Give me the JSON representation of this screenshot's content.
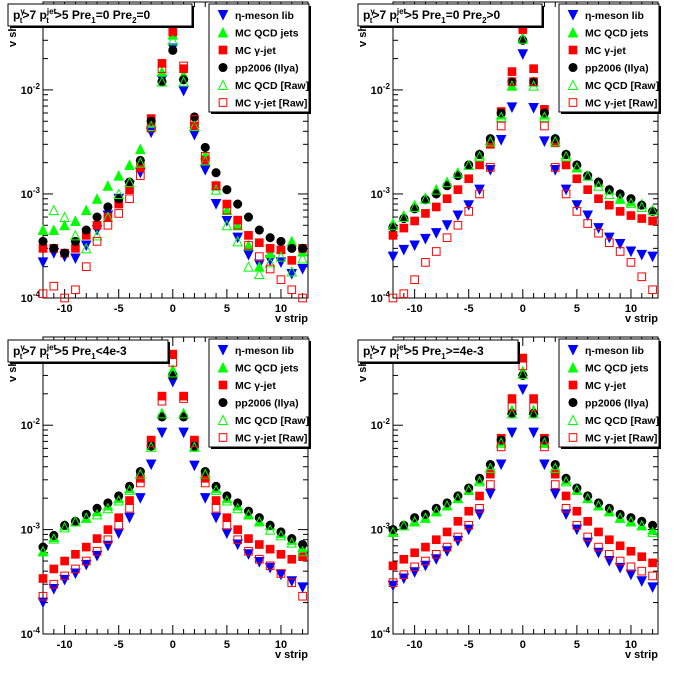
{
  "chart_data": [
    {
      "type": "scatter",
      "title": "p_t^γ>7  p_t^jet>5  Pre_1=0  Pre_2=0",
      "xlabel": "v strip",
      "ylabel": "v shape",
      "log_y": true,
      "xlim": [
        -12,
        12.5
      ],
      "ylim": [
        0.0001,
        0.07
      ],
      "x": [
        -12,
        -11,
        -10,
        -9,
        -8,
        -7,
        -6,
        -5,
        -4,
        -3,
        -2,
        -1,
        0,
        1,
        2,
        3,
        4,
        5,
        6,
        7,
        8,
        9,
        10,
        11,
        12
      ],
      "series": [
        {
          "name": "η-meson lib",
          "values": [
            0.00022,
            0.00027,
            0.00025,
            0.00024,
            0.00032,
            0.00045,
            0.00062,
            0.0009,
            0.0012,
            0.0016,
            0.0039,
            0.0125,
            0.025,
            0.0098,
            0.0037,
            0.0017,
            0.0008,
            0.00055,
            0.00038,
            0.00026,
            0.00021,
            0.00023,
            0.00022,
            0.00017,
            0.00019
          ]
        },
        {
          "name": "MC QCD jets",
          "values": [
            0.00045,
            0.00045,
            0.0005,
            0.00055,
            0.0007,
            0.0009,
            0.0012,
            0.0015,
            0.0019,
            0.0027,
            0.0049,
            0.015,
            0.034,
            0.014,
            0.0048,
            0.0024,
            0.0012,
            0.0007,
            0.0005,
            0.00032,
            0.0002,
            0.00027,
            0.0003,
            0.00035,
            0.00028
          ]
        },
        {
          "name": "MC γ-jet",
          "values": [
            0.0003,
            0.0003,
            0.00027,
            0.0003,
            0.0004,
            0.0005,
            0.0006,
            0.0008,
            0.0011,
            0.0018,
            0.0053,
            0.018,
            0.036,
            0.016,
            0.0045,
            0.0021,
            0.0012,
            0.0008,
            0.00056,
            0.0004,
            0.00034,
            0.0003,
            0.00029,
            0.00023,
            0.0003
          ]
        },
        {
          "name": "pp2006 (Ilya)",
          "values": [
            0.00035,
            0.0003,
            0.00027,
            0.00035,
            0.00045,
            0.0006,
            0.00075,
            0.0009,
            0.0013,
            0.0021,
            0.005,
            0.012,
            0.024,
            0.0125,
            0.0055,
            0.0028,
            0.0016,
            0.0011,
            0.0008,
            0.0006,
            0.00045,
            0.00038,
            0.00035,
            0.0003,
            0.0003
          ]
        },
        {
          "name": "MC QCD [Raw]",
          "values": [
            0.00045,
            0.0007,
            0.0006,
            0.0004,
            0.0003,
            0.0004,
            0.0006,
            0.001,
            0.0013,
            0.002,
            0.0045,
            0.012,
            0.03,
            0.012,
            0.0045,
            0.0021,
            0.0011,
            0.0005,
            0.00035,
            0.0002,
            0.00017,
            0.00022,
            0.00025,
            0.00018,
            0.00024
          ]
        },
        {
          "name": "MC γ-jet [Raw]",
          "values": [
            0.00011,
            0.00013,
            0.0001,
            0.00012,
            0.0002,
            0.00035,
            0.0005,
            0.00065,
            0.0009,
            0.0015,
            0.0043,
            0.016,
            0.038,
            0.017,
            0.0052,
            0.0023,
            0.0012,
            0.0007,
            0.0005,
            0.00032,
            0.00025,
            0.00019,
            0.00015,
            0.00012,
            0.0001
          ]
        }
      ]
    },
    {
      "type": "scatter",
      "title": "p_t^γ>7  p_t^jet>5  Pre_1=0  Pre_2>0",
      "xlabel": "v strip",
      "ylabel": "v shape",
      "log_y": true,
      "xlim": [
        -12,
        12.5
      ],
      "ylim": [
        0.0001,
        0.07
      ],
      "x": [
        -12,
        -11,
        -10,
        -9,
        -8,
        -7,
        -6,
        -5,
        -4,
        -3,
        -2,
        -1,
        0,
        1,
        2,
        3,
        4,
        5,
        6,
        7,
        8,
        9,
        10,
        11,
        12
      ],
      "series": [
        {
          "name": "η-meson lib",
          "values": [
            0.00025,
            0.00029,
            0.00032,
            0.00037,
            0.00042,
            0.0005,
            0.00062,
            0.00078,
            0.0011,
            0.0017,
            0.0033,
            0.0068,
            0.022,
            0.0067,
            0.0032,
            0.0017,
            0.0011,
            0.00078,
            0.00062,
            0.00047,
            0.00038,
            0.00033,
            0.00028,
            0.00026,
            0.00025
          ]
        },
        {
          "name": "MC QCD jets",
          "values": [
            0.00052,
            0.00062,
            0.00078,
            0.00092,
            0.0011,
            0.0013,
            0.0016,
            0.0019,
            0.0024,
            0.0033,
            0.0058,
            0.011,
            0.032,
            0.012,
            0.0058,
            0.0034,
            0.0024,
            0.0018,
            0.0015,
            0.0013,
            0.0011,
            0.0009,
            0.00085,
            0.0008,
            0.0007
          ]
        },
        {
          "name": "MC γ-jet",
          "values": [
            0.0004,
            0.00047,
            0.00055,
            0.00065,
            0.00075,
            0.0009,
            0.0011,
            0.0014,
            0.0019,
            0.003,
            0.0062,
            0.015,
            0.038,
            0.016,
            0.0065,
            0.0031,
            0.0019,
            0.0014,
            0.0011,
            0.0009,
            0.00078,
            0.00068,
            0.00062,
            0.00058,
            0.00055
          ]
        },
        {
          "name": "pp2006 (Ilya)",
          "values": [
            0.00048,
            0.00058,
            0.00072,
            0.00088,
            0.001,
            0.0012,
            0.0015,
            0.0019,
            0.0024,
            0.0034,
            0.006,
            0.012,
            0.03,
            0.012,
            0.006,
            0.0034,
            0.0024,
            0.0019,
            0.0015,
            0.0013,
            0.0011,
            0.001,
            0.0009,
            0.00078,
            0.00068
          ]
        },
        {
          "name": "MC QCD [Raw]",
          "values": [
            0.0005,
            0.0006,
            0.00075,
            0.0009,
            0.0011,
            0.0013,
            0.0016,
            0.0019,
            0.0023,
            0.0032,
            0.0055,
            0.011,
            0.031,
            0.011,
            0.0055,
            0.0032,
            0.0023,
            0.0018,
            0.0015,
            0.0012,
            0.001,
            0.0009,
            0.00082,
            0.00075,
            0.0007
          ]
        },
        {
          "name": "MC γ-jet [Raw]",
          "values": [
            0.0001,
            0.00011,
            0.00015,
            0.00022,
            0.00028,
            0.00038,
            0.0005,
            0.00068,
            0.001,
            0.0018,
            0.0045,
            0.012,
            0.052,
            0.012,
            0.0045,
            0.0018,
            0.001,
            0.00068,
            0.00052,
            0.00042,
            0.00034,
            0.00028,
            0.00022,
            0.00016,
            0.00012
          ]
        }
      ]
    },
    {
      "type": "scatter",
      "title": "p_t^γ>7  p_t^jet>5  Pre_1<4e-3",
      "xlabel": "v strip",
      "ylabel": "v shape",
      "log_y": true,
      "xlim": [
        -12,
        12.5
      ],
      "ylim": [
        0.0001,
        0.07
      ],
      "x": [
        -12,
        -11,
        -10,
        -9,
        -8,
        -7,
        -6,
        -5,
        -4,
        -3,
        -2,
        -1,
        0,
        1,
        2,
        3,
        4,
        5,
        6,
        7,
        8,
        9,
        10,
        11,
        12
      ],
      "series": [
        {
          "name": "η-meson lib",
          "values": [
            0.0002,
            0.00027,
            0.00033,
            0.00038,
            0.00046,
            0.00056,
            0.0007,
            0.00092,
            0.0013,
            0.002,
            0.0042,
            0.0085,
            0.026,
            0.0085,
            0.0041,
            0.002,
            0.0013,
            0.00092,
            0.00072,
            0.00058,
            0.00049,
            0.00043,
            0.00037,
            0.00032,
            0.00028
          ]
        },
        {
          "name": "MC QCD jets",
          "values": [
            0.00062,
            0.00085,
            0.0011,
            0.0012,
            0.0013,
            0.0015,
            0.0017,
            0.002,
            0.0025,
            0.0035,
            0.0065,
            0.013,
            0.034,
            0.013,
            0.0063,
            0.0035,
            0.0025,
            0.002,
            0.0017,
            0.0014,
            0.0012,
            0.0011,
            0.00093,
            0.0008,
            0.00068
          ]
        },
        {
          "name": "MC γ-jet",
          "values": [
            0.00034,
            0.00042,
            0.0005,
            0.00058,
            0.00068,
            0.00082,
            0.001,
            0.0013,
            0.0019,
            0.0031,
            0.0072,
            0.019,
            0.048,
            0.019,
            0.0072,
            0.0031,
            0.0019,
            0.0013,
            0.001,
            0.00082,
            0.00072,
            0.00065,
            0.00058,
            0.00052,
            0.00055
          ]
        },
        {
          "name": "pp2006 (Ilya)",
          "values": [
            0.00068,
            0.00088,
            0.0011,
            0.0012,
            0.0014,
            0.0016,
            0.0018,
            0.0021,
            0.0026,
            0.0036,
            0.0063,
            0.012,
            0.03,
            0.012,
            0.0063,
            0.0036,
            0.0026,
            0.0021,
            0.0018,
            0.0015,
            0.0013,
            0.0011,
            0.00095,
            0.00082,
            0.00072
          ]
        },
        {
          "name": "MC QCD [Raw]",
          "values": [
            0.00062,
            0.00082,
            0.00105,
            0.0012,
            0.0013,
            0.0014,
            0.0016,
            0.0019,
            0.0024,
            0.0034,
            0.0062,
            0.013,
            0.032,
            0.013,
            0.0062,
            0.0034,
            0.0024,
            0.0019,
            0.0016,
            0.0014,
            0.0012,
            0.001,
            0.00088,
            0.00075,
            0.00062
          ]
        },
        {
          "name": "MC γ-jet [Raw]",
          "values": [
            0.00023,
            0.0003,
            0.00036,
            0.00042,
            0.0005,
            0.00062,
            0.0008,
            0.0011,
            0.0016,
            0.0028,
            0.0068,
            0.017,
            0.04,
            0.018,
            0.0068,
            0.0028,
            0.0016,
            0.0011,
            0.0008,
            0.00062,
            0.00052,
            0.00045,
            0.00038,
            0.00031,
            0.00023
          ]
        }
      ]
    },
    {
      "type": "scatter",
      "title": "p_t^γ>7  p_t^jet>5  Pre_1>=4e-3",
      "xlabel": "v strip",
      "ylabel": "v shape",
      "log_y": true,
      "xlim": [
        -12,
        12.5
      ],
      "ylim": [
        0.0001,
        0.07
      ],
      "x": [
        -12,
        -11,
        -10,
        -9,
        -8,
        -7,
        -6,
        -5,
        -4,
        -3,
        -2,
        -1,
        0,
        1,
        2,
        3,
        4,
        5,
        6,
        7,
        8,
        9,
        10,
        11,
        12
      ],
      "series": [
        {
          "name": "η-meson lib",
          "values": [
            0.00029,
            0.00034,
            0.00039,
            0.00045,
            0.00052,
            0.00062,
            0.00078,
            0.001,
            0.0014,
            0.0022,
            0.0042,
            0.0085,
            0.022,
            0.0085,
            0.0042,
            0.0022,
            0.0014,
            0.001,
            0.00075,
            0.0006,
            0.0005,
            0.00043,
            0.00037,
            0.00032,
            0.00028
          ]
        },
        {
          "name": "MC QCD jets",
          "values": [
            0.00095,
            0.0011,
            0.0012,
            0.0013,
            0.0015,
            0.0017,
            0.002,
            0.0024,
            0.003,
            0.004,
            0.007,
            0.014,
            0.033,
            0.014,
            0.0068,
            0.004,
            0.003,
            0.0024,
            0.002,
            0.0017,
            0.0015,
            0.0013,
            0.0012,
            0.0011,
            0.001
          ]
        },
        {
          "name": "MC γ-jet",
          "values": [
            0.00045,
            0.00052,
            0.0006,
            0.00068,
            0.0008,
            0.00095,
            0.0012,
            0.0015,
            0.0021,
            0.0034,
            0.0075,
            0.018,
            0.044,
            0.018,
            0.0075,
            0.0034,
            0.0021,
            0.0015,
            0.0012,
            0.00095,
            0.0008,
            0.0007,
            0.00062,
            0.00055,
            0.00048
          ]
        },
        {
          "name": "pp2006 (Ilya)",
          "values": [
            0.001,
            0.0011,
            0.0013,
            0.0014,
            0.0016,
            0.0018,
            0.0021,
            0.0025,
            0.0031,
            0.0042,
            0.0072,
            0.013,
            0.03,
            0.013,
            0.0072,
            0.0042,
            0.0031,
            0.0025,
            0.0021,
            0.0018,
            0.0016,
            0.0014,
            0.0013,
            0.0012,
            0.0011
          ]
        },
        {
          "name": "MC QCD [Raw]",
          "values": [
            0.00095,
            0.0011,
            0.0012,
            0.0013,
            0.0015,
            0.0017,
            0.002,
            0.0024,
            0.0029,
            0.0039,
            0.0068,
            0.013,
            0.031,
            0.013,
            0.0068,
            0.0039,
            0.0029,
            0.0024,
            0.002,
            0.0017,
            0.0015,
            0.0013,
            0.0012,
            0.0011,
            0.00095
          ]
        },
        {
          "name": "MC γ-jet [Raw]",
          "values": [
            0.00031,
            0.00037,
            0.00044,
            0.0005,
            0.00058,
            0.00068,
            0.00085,
            0.0011,
            0.0016,
            0.0027,
            0.0062,
            0.015,
            0.037,
            0.015,
            0.0062,
            0.0027,
            0.0016,
            0.0011,
            0.00085,
            0.00068,
            0.00058,
            0.0005,
            0.00044,
            0.0004,
            0.00036
          ]
        }
      ]
    }
  ],
  "panels": [
    {
      "title_parts": {
        "p": "p",
        "sup1": "γ",
        "sub1": "t",
        "gt1": ">7",
        "p2": "p",
        "sup2": "jet",
        "sub2": "t",
        "gt2": ">5",
        "cuts": [
          {
            "name": "Pre",
            "sub": "1",
            "op": "=0"
          },
          {
            "name": "Pre",
            "sub": "2",
            "op": "=0"
          }
        ]
      }
    },
    {
      "title_parts": {
        "p": "p",
        "sup1": "γ",
        "sub1": "t",
        "gt1": ">7",
        "p2": "p",
        "sup2": "jet",
        "sub2": "t",
        "gt2": ">5",
        "cuts": [
          {
            "name": "Pre",
            "sub": "1",
            "op": "=0"
          },
          {
            "name": "Pre",
            "sub": "2",
            "op": ">0"
          }
        ]
      }
    },
    {
      "title_parts": {
        "p": "p",
        "sup1": "γ",
        "sub1": "t",
        "gt1": ">7",
        "p2": "p",
        "sup2": "jet",
        "sub2": "t",
        "gt2": ">5",
        "cuts": [
          {
            "name": "Pre",
            "sub": "1",
            "op": "<4e-3"
          }
        ]
      }
    },
    {
      "title_parts": {
        "p": "p",
        "sup1": "γ",
        "sub1": "t",
        "gt1": ">7",
        "p2": "p",
        "sup2": "jet",
        "sub2": "t",
        "gt2": ">5",
        "cuts": [
          {
            "name": "Pre",
            "sub": "1",
            "op": ">=4e-3"
          }
        ]
      }
    }
  ],
  "axes": {
    "x_ticks": [
      -10,
      -5,
      0,
      5,
      10
    ],
    "x_tick_labels": [
      "-10",
      "-5",
      "0",
      "5",
      "10"
    ],
    "y_ticks": [
      0.0001,
      0.001,
      0.01
    ],
    "y_tick_labels": [
      {
        "base": "10",
        "exp": "-4"
      },
      {
        "base": "10",
        "exp": "-3"
      },
      {
        "base": "10",
        "exp": "-2"
      }
    ]
  },
  "legend": [
    {
      "label": "η-meson lib",
      "marker": "triangle-down-filled",
      "color": "#0000ff"
    },
    {
      "label": "MC QCD jets",
      "marker": "triangle-up-filled",
      "color": "#00ff00"
    },
    {
      "label": "MC γ-jet",
      "marker": "square-filled",
      "color": "#ff0000"
    },
    {
      "label": "pp2006 (Ilya)",
      "marker": "circle-filled",
      "color": "#000000"
    },
    {
      "label": "MC QCD [Raw]",
      "marker": "triangle-up-open",
      "color": "#00ff00"
    },
    {
      "label": "MC γ-jet [Raw]",
      "marker": "square-open",
      "color": "#ff0000"
    }
  ]
}
